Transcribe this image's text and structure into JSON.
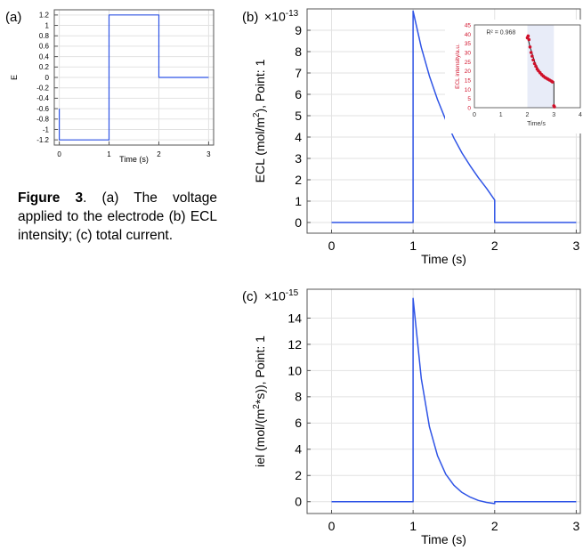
{
  "caption": {
    "bold": "Figure 3",
    "text": ". (a) The voltage applied to the electrode (b) ECL intensity; (c) total current."
  },
  "colors": {
    "line": "#2f54e6",
    "marker": "#d0102a",
    "grid": "#e2e2e2",
    "inset_shade": "#e8ecf8"
  },
  "chart_data": [
    {
      "id": "a",
      "panel_label": "(a)",
      "type": "line",
      "ylabel": "E",
      "xlabel": "Time (s)",
      "xlim": [
        -0.1,
        3.1
      ],
      "ylim": [
        -1.3,
        1.3
      ],
      "xticks": [
        "0",
        "1",
        "2",
        "3"
      ],
      "yticks": [
        "1.2",
        "1",
        "0.8",
        "0.6",
        "0.4",
        "0.2",
        "0",
        "-0.2",
        "-0.4",
        "-0.6",
        "-0.8",
        "-1",
        "-1.2"
      ],
      "grid": true,
      "series": [
        {
          "x": [
            0,
            0,
            1,
            1,
            2,
            2,
            3
          ],
          "y": [
            -0.6,
            -1.2,
            -1.2,
            1.2,
            1.2,
            0,
            0
          ]
        }
      ]
    },
    {
      "id": "b",
      "panel_label": "(b)",
      "scale": "×10",
      "scale_exp": "-13",
      "type": "line",
      "ylabel": "ECL (mol/m², Point: 1",
      "ylabel_pre": "ECL (mol/m",
      "ylabel_sup": "2",
      "ylabel_post": "), Point: 1",
      "xlabel": "Time (s)",
      "xlim": [
        -0.3,
        3.05
      ],
      "ylim": [
        -0.5,
        10.0
      ],
      "xticks": [
        "0",
        "1",
        "2",
        "3"
      ],
      "yticks": [
        "0",
        "1",
        "2",
        "3",
        "4",
        "5",
        "6",
        "7",
        "8",
        "9"
      ],
      "grid": true,
      "series": [
        {
          "x": [
            0,
            1,
            1,
            1.1,
            1.2,
            1.3,
            1.4,
            1.5,
            1.6,
            1.7,
            1.8,
            1.9,
            2,
            2,
            3
          ],
          "y": [
            0,
            0,
            9.9,
            8.2,
            6.85,
            5.75,
            4.8,
            3.95,
            3.25,
            2.65,
            2.1,
            1.6,
            1.05,
            0,
            0
          ]
        }
      ],
      "inset": {
        "ylabel": "ECL intensity/a.u.",
        "xlabel": "Time/s",
        "annotation": "R² = 0.968",
        "xlim": [
          0,
          4
        ],
        "ylim": [
          0,
          45
        ],
        "xticks": [
          "0",
          "1",
          "2",
          "3",
          "4"
        ],
        "yticks": [
          "0",
          "5",
          "10",
          "15",
          "20",
          "25",
          "30",
          "35",
          "40",
          "45"
        ],
        "shade": [
          2,
          3
        ],
        "markers_x": [
          2.0,
          2.03,
          2.06,
          2.1,
          2.14,
          2.18,
          2.22,
          2.27,
          2.32,
          2.37,
          2.42,
          2.48,
          2.54,
          2.6,
          2.66,
          2.72,
          2.78,
          2.84,
          2.9,
          2.95,
          3.0,
          3.02
        ],
        "markers_y": [
          38,
          39,
          37,
          33,
          30,
          28,
          26,
          24,
          22.5,
          21,
          20,
          19,
          18,
          17.2,
          16.5,
          16,
          15.5,
          15,
          14.5,
          14,
          1,
          0.5
        ],
        "fit_x": [
          2.0,
          2.1,
          2.3,
          2.5,
          2.7,
          2.9,
          3.0,
          3.0
        ],
        "fit_y": [
          39,
          33,
          24,
          18.5,
          16.2,
          14.8,
          14.2,
          0.5
        ]
      }
    },
    {
      "id": "c",
      "panel_label": "(c)",
      "scale": "×10",
      "scale_exp": "-15",
      "type": "line",
      "ylabel_pre": "iel (mol/(m",
      "ylabel_sup": "2",
      "ylabel_post": "*s)), Point: 1",
      "xlabel": "Time (s)",
      "xlim": [
        -0.3,
        3.05
      ],
      "ylim": [
        -0.9,
        16.2
      ],
      "xticks": [
        "0",
        "1",
        "2",
        "3"
      ],
      "yticks": [
        "0",
        "2",
        "4",
        "6",
        "8",
        "10",
        "12",
        "14"
      ],
      "grid": true,
      "series": [
        {
          "x": [
            0,
            1,
            1,
            1.1,
            1.2,
            1.3,
            1.4,
            1.5,
            1.6,
            1.7,
            1.8,
            1.9,
            2,
            2,
            3
          ],
          "y": [
            0,
            0,
            15.5,
            9.4,
            5.7,
            3.5,
            2.1,
            1.25,
            0.7,
            0.35,
            0.1,
            -0.05,
            -0.15,
            0,
            0
          ]
        }
      ]
    }
  ]
}
